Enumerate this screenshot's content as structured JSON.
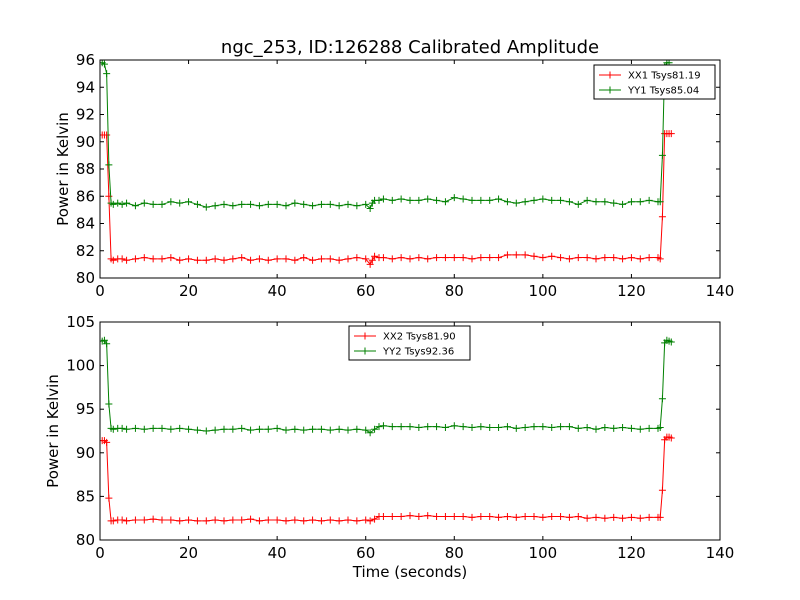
{
  "figure": {
    "title": "ngc_253, ID:126288 Calibrated Amplitude",
    "xlabel": "Time (seconds)"
  },
  "colors": {
    "red": "#ff0000",
    "green": "#008000",
    "axes": "#000000"
  },
  "chart_data": [
    {
      "type": "line",
      "title": "ngc_253, ID:126288 Calibrated Amplitude",
      "xlabel": "",
      "ylabel": "Power in Kelvin",
      "xlim": [
        0,
        140
      ],
      "ylim": [
        80,
        96
      ],
      "xticks": [
        0,
        20,
        40,
        60,
        80,
        100,
        120,
        140
      ],
      "yticks": [
        80,
        82,
        84,
        86,
        88,
        90,
        92,
        94,
        96
      ],
      "grid": false,
      "legend_position": "top-right",
      "marker": "+",
      "series": [
        {
          "name": "XX1 Tsys81.19",
          "color": "#ff0000",
          "x": [
            0.5,
            1,
            1.5,
            2,
            2.5,
            3,
            4,
            5,
            6,
            8,
            10,
            12,
            14,
            16,
            18,
            20,
            22,
            24,
            26,
            28,
            30,
            32,
            34,
            36,
            38,
            40,
            42,
            44,
            46,
            48,
            50,
            52,
            54,
            56,
            58,
            60,
            61,
            61.5,
            62,
            63,
            64,
            66,
            68,
            70,
            72,
            74,
            76,
            78,
            80,
            82,
            84,
            86,
            88,
            90,
            92,
            94,
            96,
            98,
            100,
            102,
            104,
            106,
            108,
            110,
            112,
            114,
            116,
            118,
            120,
            122,
            124,
            126,
            126.5,
            127,
            127.5,
            128,
            128.5,
            129
          ],
          "y": [
            90.5,
            90.5,
            90.5,
            86.0,
            81.4,
            81.3,
            81.4,
            81.4,
            81.3,
            81.4,
            81.5,
            81.4,
            81.4,
            81.5,
            81.3,
            81.4,
            81.3,
            81.3,
            81.4,
            81.3,
            81.4,
            81.5,
            81.3,
            81.4,
            81.3,
            81.4,
            81.4,
            81.3,
            81.5,
            81.3,
            81.4,
            81.4,
            81.3,
            81.4,
            81.5,
            81.4,
            81.0,
            81.3,
            81.6,
            81.5,
            81.5,
            81.4,
            81.5,
            81.4,
            81.5,
            81.4,
            81.5,
            81.5,
            81.5,
            81.5,
            81.4,
            81.5,
            81.5,
            81.5,
            81.7,
            81.7,
            81.7,
            81.6,
            81.5,
            81.6,
            81.5,
            81.4,
            81.5,
            81.5,
            81.4,
            81.5,
            81.5,
            81.4,
            81.5,
            81.4,
            81.5,
            81.5,
            81.4,
            84.5,
            90.6,
            90.6,
            90.6,
            90.6
          ]
        },
        {
          "name": "YY1 Tsys85.04",
          "color": "#008000",
          "x": [
            0.5,
            1,
            1.5,
            2,
            2.5,
            3,
            4,
            5,
            6,
            8,
            10,
            12,
            14,
            16,
            18,
            20,
            22,
            24,
            26,
            28,
            30,
            32,
            34,
            36,
            38,
            40,
            42,
            44,
            46,
            48,
            50,
            52,
            54,
            56,
            58,
            60,
            61,
            61.5,
            62,
            63,
            64,
            66,
            68,
            70,
            72,
            74,
            76,
            78,
            80,
            82,
            84,
            86,
            88,
            90,
            92,
            94,
            96,
            98,
            100,
            102,
            104,
            106,
            108,
            110,
            112,
            114,
            116,
            118,
            120,
            122,
            124,
            126,
            126.5,
            127,
            127.5,
            128,
            128.5
          ],
          "y": [
            95.8,
            95.7,
            95.0,
            88.3,
            85.5,
            85.4,
            85.5,
            85.4,
            85.5,
            85.3,
            85.5,
            85.4,
            85.4,
            85.6,
            85.5,
            85.6,
            85.4,
            85.2,
            85.3,
            85.4,
            85.3,
            85.4,
            85.4,
            85.3,
            85.4,
            85.4,
            85.3,
            85.5,
            85.4,
            85.3,
            85.4,
            85.4,
            85.3,
            85.4,
            85.3,
            85.4,
            85.1,
            85.5,
            85.7,
            85.7,
            85.8,
            85.7,
            85.8,
            85.7,
            85.7,
            85.8,
            85.7,
            85.6,
            85.9,
            85.8,
            85.7,
            85.7,
            85.7,
            85.8,
            85.6,
            85.5,
            85.6,
            85.7,
            85.8,
            85.7,
            85.7,
            85.6,
            85.4,
            85.7,
            85.6,
            85.6,
            85.5,
            85.4,
            85.6,
            85.6,
            85.7,
            85.6,
            85.6,
            89.0,
            95.5,
            95.8,
            95.8
          ]
        }
      ]
    },
    {
      "type": "line",
      "title": "",
      "xlabel": "Time (seconds)",
      "ylabel": "Power in Kelvin",
      "xlim": [
        0,
        140
      ],
      "ylim": [
        80,
        105
      ],
      "xticks": [
        0,
        20,
        40,
        60,
        80,
        100,
        120,
        140
      ],
      "yticks": [
        80,
        85,
        90,
        95,
        100,
        105
      ],
      "grid": false,
      "legend_position": "top-center",
      "marker": "+",
      "series": [
        {
          "name": "XX2 Tsys81.90",
          "color": "#ff0000",
          "x": [
            0.5,
            1,
            1.5,
            2,
            2.5,
            3,
            4,
            5,
            6,
            8,
            10,
            12,
            14,
            16,
            18,
            20,
            22,
            24,
            26,
            28,
            30,
            32,
            34,
            36,
            38,
            40,
            42,
            44,
            46,
            48,
            50,
            52,
            54,
            56,
            58,
            60,
            61,
            62,
            63,
            64,
            66,
            68,
            70,
            72,
            74,
            76,
            78,
            80,
            82,
            84,
            86,
            88,
            90,
            92,
            94,
            96,
            98,
            100,
            102,
            104,
            106,
            108,
            110,
            112,
            114,
            116,
            118,
            120,
            122,
            124,
            126,
            126.5,
            127,
            127.5,
            128,
            128.5,
            129
          ],
          "y": [
            91.4,
            91.4,
            91.2,
            84.8,
            82.2,
            82.2,
            82.3,
            82.3,
            82.2,
            82.3,
            82.3,
            82.4,
            82.3,
            82.3,
            82.2,
            82.3,
            82.2,
            82.2,
            82.3,
            82.2,
            82.3,
            82.3,
            82.4,
            82.2,
            82.3,
            82.3,
            82.2,
            82.3,
            82.2,
            82.3,
            82.2,
            82.3,
            82.2,
            82.3,
            82.2,
            82.3,
            82.2,
            82.4,
            82.7,
            82.7,
            82.7,
            82.7,
            82.8,
            82.7,
            82.8,
            82.7,
            82.7,
            82.7,
            82.7,
            82.6,
            82.7,
            82.7,
            82.6,
            82.7,
            82.6,
            82.7,
            82.7,
            82.6,
            82.7,
            82.7,
            82.6,
            82.7,
            82.5,
            82.6,
            82.5,
            82.6,
            82.5,
            82.6,
            82.5,
            82.6,
            82.6,
            82.6,
            85.7,
            91.5,
            91.8,
            91.8,
            91.7
          ]
        },
        {
          "name": "YY2 Tsys92.36",
          "color": "#008000",
          "x": [
            0.5,
            1,
            1.5,
            2,
            2.5,
            3,
            4,
            5,
            6,
            8,
            10,
            12,
            14,
            16,
            18,
            20,
            22,
            24,
            26,
            28,
            30,
            32,
            34,
            36,
            38,
            40,
            42,
            44,
            46,
            48,
            50,
            52,
            54,
            56,
            58,
            60,
            61,
            62,
            63,
            64,
            66,
            68,
            70,
            72,
            74,
            76,
            78,
            80,
            82,
            84,
            86,
            88,
            90,
            92,
            94,
            96,
            98,
            100,
            102,
            104,
            106,
            108,
            110,
            112,
            114,
            116,
            118,
            120,
            122,
            124,
            126,
            126.5,
            127,
            127.5,
            128,
            128.5,
            129
          ],
          "y": [
            102.8,
            102.9,
            102.5,
            95.6,
            92.8,
            92.7,
            92.8,
            92.8,
            92.7,
            92.8,
            92.7,
            92.8,
            92.8,
            92.7,
            92.8,
            92.7,
            92.6,
            92.5,
            92.6,
            92.7,
            92.7,
            92.8,
            92.6,
            92.7,
            92.7,
            92.8,
            92.6,
            92.7,
            92.6,
            92.7,
            92.7,
            92.6,
            92.7,
            92.6,
            92.7,
            92.6,
            92.3,
            92.7,
            93.0,
            93.1,
            93.0,
            93.0,
            93.0,
            92.9,
            93.0,
            93.0,
            92.9,
            93.1,
            93.0,
            92.9,
            93.0,
            92.9,
            92.9,
            93.0,
            92.8,
            92.9,
            93.0,
            93.0,
            92.9,
            93.0,
            93.0,
            92.8,
            92.9,
            92.7,
            92.9,
            92.8,
            92.9,
            92.8,
            92.7,
            92.8,
            92.8,
            92.9,
            96.2,
            102.6,
            102.9,
            102.8,
            102.7
          ]
        }
      ]
    }
  ]
}
